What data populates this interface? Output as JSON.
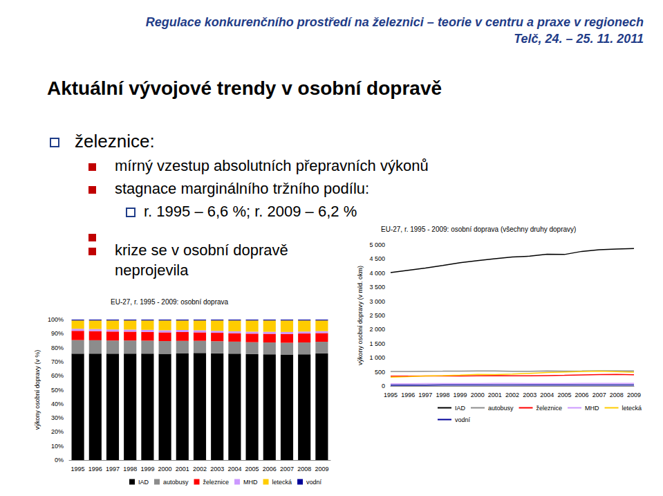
{
  "header": {
    "title": "Regulace konkurenčního prostředí na železnici – teorie v centru a praxe v regionech",
    "subtitle": "Telč, 24. – 25. 11. 2011"
  },
  "slide_title": "Aktuální vývojové trendy v osobní dopravě",
  "bullets": [
    {
      "text": "železnice:",
      "items": [
        {
          "text": "mírný vzestup absolutních přepravních výkonů"
        },
        {
          "text": "stagnace marginálního tržního podílu:",
          "items": [
            {
              "text": "r. 1995 – 6,6 %; r. 2009 – 6,2 %"
            }
          ]
        },
        {
          "text": "krize se v osobní dopravě neprojevila"
        }
      ]
    }
  ],
  "chart_data": [
    {
      "type": "bar",
      "title": "EU-27, r. 1995 - 2009: osobní doprava",
      "y_label": "výkony osobní dopravy (v %)",
      "categories": [
        "1995",
        "1996",
        "1997",
        "1998",
        "1999",
        "2000",
        "2001",
        "2002",
        "2003",
        "2004",
        "2005",
        "2006",
        "2007",
        "2008",
        "2009"
      ],
      "stacked": true,
      "grid": false,
      "legend": "bottom",
      "ylim": [
        0,
        100
      ],
      "yticks": [
        {
          "value": 0,
          "label": "0%"
        },
        {
          "value": 10,
          "label": "10%"
        },
        {
          "value": 20,
          "label": "20%"
        },
        {
          "value": 30,
          "label": "30%"
        },
        {
          "value": 40,
          "label": "40%"
        },
        {
          "value": 50,
          "label": "50%"
        },
        {
          "value": 60,
          "label": "60%"
        },
        {
          "value": 70,
          "label": "70%"
        },
        {
          "value": 80,
          "label": "80%"
        },
        {
          "value": 90,
          "label": "90%"
        },
        {
          "value": 100,
          "label": "100%"
        }
      ],
      "series": [
        {
          "name": "IAD",
          "color": "#000000",
          "values": [
            75.7,
            75.8,
            75.7,
            75.8,
            75.8,
            75.6,
            75.9,
            76.2,
            76.0,
            75.7,
            75.4,
            75.3,
            75.1,
            75.3,
            75.9
          ]
        },
        {
          "name": "autobusy",
          "color": "#8c8c8c",
          "values": [
            9.7,
            9.5,
            9.4,
            9.3,
            9.2,
            9.1,
            9.0,
            8.7,
            8.6,
            8.6,
            8.5,
            8.4,
            8.4,
            8.4,
            8.3
          ]
        },
        {
          "name": "železnice",
          "color": "#ff0000",
          "values": [
            6.6,
            6.5,
            6.4,
            6.3,
            6.2,
            6.2,
            6.2,
            6.0,
            6.0,
            6.0,
            6.1,
            6.2,
            6.3,
            6.4,
            6.2
          ]
        },
        {
          "name": "MHD",
          "color": "#cc99ff",
          "values": [
            1.5,
            1.5,
            1.5,
            1.5,
            1.5,
            1.5,
            1.5,
            1.5,
            1.4,
            1.4,
            1.4,
            1.4,
            1.4,
            1.4,
            1.4
          ]
        },
        {
          "name": "letecká",
          "color": "#ffcc00",
          "values": [
            5.9,
            6.1,
            6.4,
            6.5,
            6.7,
            7.0,
            6.8,
            7.0,
            7.4,
            7.7,
            8.0,
            8.1,
            8.2,
            7.9,
            7.6
          ]
        },
        {
          "name": "vodní",
          "color": "#000099",
          "values": [
            0.6,
            0.6,
            0.6,
            0.6,
            0.6,
            0.6,
            0.6,
            0.6,
            0.6,
            0.6,
            0.6,
            0.6,
            0.6,
            0.6,
            0.6
          ]
        }
      ]
    },
    {
      "type": "line",
      "title": "EU-27, r. 1995 - 2009: osobní doprava (všechny druhy dopravy)",
      "y_label": "výkony osobní dopravy (v mld. okm)",
      "categories": [
        "1995",
        "1996",
        "1997",
        "1998",
        "1999",
        "2000",
        "2001",
        "2002",
        "2003",
        "2004",
        "2005",
        "2006",
        "2007",
        "2008",
        "2009"
      ],
      "grid": false,
      "legend": "bottom",
      "ylim": [
        0,
        5000
      ],
      "yticks": [
        0,
        500,
        {
          "value": 1000,
          "label": "1 000"
        },
        {
          "value": 1500,
          "label": "1 500"
        },
        {
          "value": 2000,
          "label": "2 000"
        },
        {
          "value": 2500,
          "label": "2 500"
        },
        {
          "value": 3000,
          "label": "3 000"
        },
        {
          "value": 3500,
          "label": "3 500"
        },
        {
          "value": 4000,
          "label": "4 000"
        },
        {
          "value": 4500,
          "label": "4 500"
        },
        {
          "value": 5000,
          "label": "5 000"
        }
      ],
      "series": [
        {
          "name": "IAD",
          "color": "#000000",
          "values": [
            4020,
            4100,
            4180,
            4270,
            4370,
            4440,
            4510,
            4570,
            4600,
            4670,
            4660,
            4770,
            4830,
            4850,
            4870
          ]
        },
        {
          "name": "autobusy",
          "color": "#8c8c8c",
          "values": [
            515,
            514,
            519,
            524,
            530,
            534,
            535,
            522,
            521,
            531,
            525,
            532,
            540,
            541,
            533
          ]
        },
        {
          "name": "železnice",
          "color": "#ff0000",
          "values": [
            350,
            352,
            353,
            355,
            357,
            364,
            368,
            360,
            363,
            370,
            377,
            393,
            405,
            412,
            398
          ]
        },
        {
          "name": "MHD",
          "color": "#cc99ff",
          "values": [
            80,
            81,
            83,
            84,
            86,
            88,
            89,
            90,
            85,
            86,
            87,
            89,
            90,
            90,
            90
          ]
        },
        {
          "name": "letecká",
          "color": "#ffcc00",
          "values": [
            313,
            330,
            353,
            366,
            386,
            411,
            404,
            420,
            448,
            475,
            494,
            513,
            527,
            509,
            488
          ]
        },
        {
          "name": "vodní",
          "color": "#000099",
          "values": [
            32,
            32,
            33,
            34,
            35,
            35,
            36,
            36,
            36,
            37,
            37,
            38,
            39,
            39,
            38
          ]
        }
      ]
    }
  ]
}
